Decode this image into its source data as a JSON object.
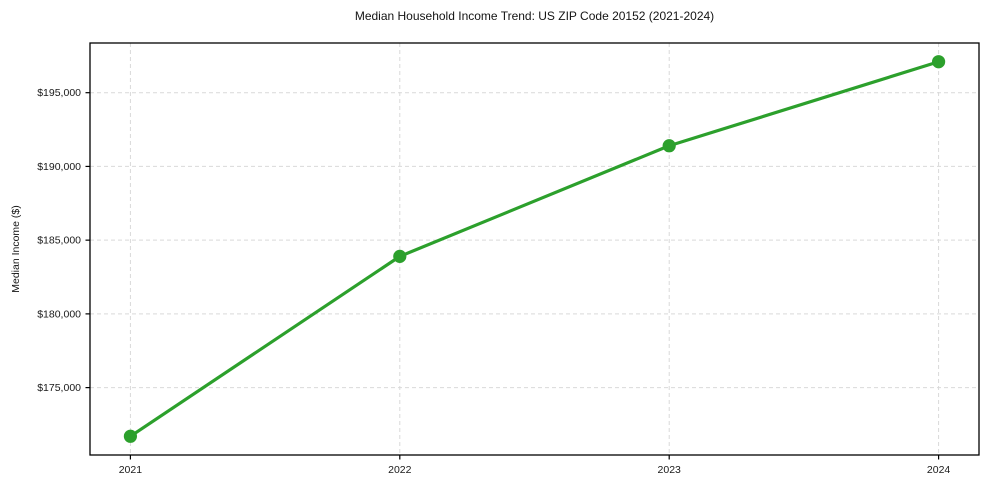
{
  "chart_data": {
    "type": "line",
    "title": "Median Household Income Trend: US ZIP Code 20152 (2021-2024)",
    "xlabel": "",
    "ylabel": "Median Income ($)",
    "x": [
      2021,
      2022,
      2023,
      2024
    ],
    "x_tick_labels": [
      "2021",
      "2022",
      "2023",
      "2024"
    ],
    "series": [
      {
        "name": "Median Household Income",
        "values": [
          171700,
          183900,
          191400,
          197100
        ]
      }
    ],
    "y_ticks": [
      175000,
      180000,
      185000,
      190000,
      195000
    ],
    "y_tick_labels": [
      "$175,000",
      "$180,000",
      "$185,000",
      "$190,000",
      "$195,000"
    ],
    "xlim": [
      2020.85,
      2024.15
    ],
    "ylim": [
      170430,
      198370
    ],
    "grid": true,
    "grid_style": "dashed",
    "legend": false,
    "colors": {
      "line": "#2ca02c",
      "marker": "#2ca02c",
      "grid": "#d9d9d9",
      "spine": "#000000",
      "text": "#1a1a1a",
      "background": "#ffffff"
    }
  }
}
